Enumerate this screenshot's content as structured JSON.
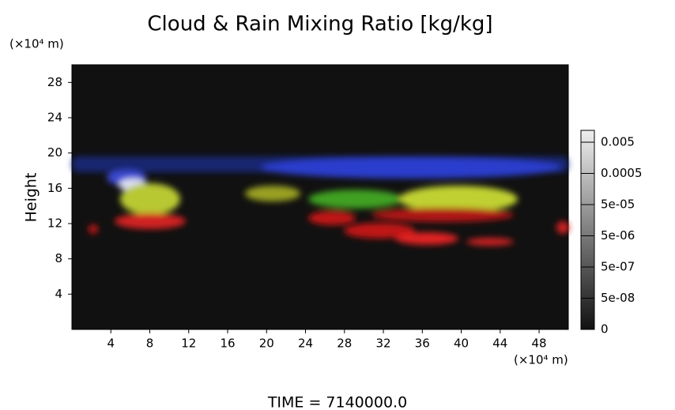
{
  "chart_data": {
    "type": "heatmap",
    "title": "Cloud & Rain Mixing Ratio [kg/kg]",
    "y_label": "Height",
    "y_unit": "(×10⁴ m)",
    "x_unit": "(×10⁴ m)",
    "xlim": [
      0,
      51
    ],
    "xticks": [
      4,
      8,
      12,
      16,
      20,
      24,
      28,
      32,
      36,
      40,
      44,
      48
    ],
    "ylim": [
      0,
      30
    ],
    "yticks": [
      4,
      8,
      12,
      16,
      20,
      24,
      28
    ],
    "colorbar_ticks": [
      0.005,
      0.0005,
      {
        "value": 5e-05,
        "label": "5e-05"
      },
      {
        "value": 5e-06,
        "label": "5e-06"
      },
      {
        "value": 5e-07,
        "label": "5e-07"
      },
      {
        "value": 5e-08,
        "label": "5e-08"
      },
      0
    ],
    "time_label": "TIME = 7140000.0"
  }
}
